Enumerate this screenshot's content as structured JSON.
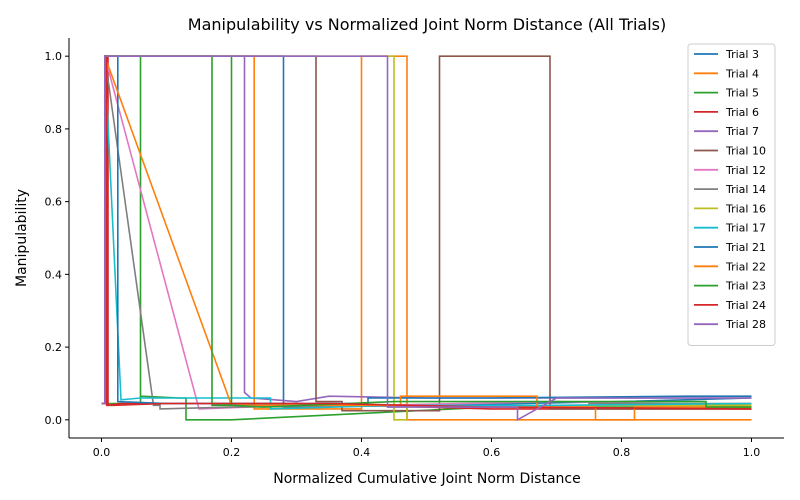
{
  "chart_data": {
    "type": "line",
    "title": "Manipulability vs Normalized Joint Norm Distance (All Trials)",
    "xlabel": "Normalized Cumulative Joint Norm Distance",
    "ylabel": "Manipulability",
    "xlim": [
      -0.05,
      1.05
    ],
    "ylim": [
      -0.05,
      1.05
    ],
    "xticks": [
      "0.0",
      "0.2",
      "0.4",
      "0.6",
      "0.8",
      "1.0"
    ],
    "yticks": [
      "0.0",
      "0.2",
      "0.4",
      "0.6",
      "0.8",
      "1.0"
    ],
    "grid": false,
    "legend_position": "top-right",
    "series": [
      {
        "name": "Trial 3",
        "color": "#1f77b4",
        "x": [
          0.0,
          0.005,
          0.005,
          0.02,
          0.2,
          0.28,
          0.28,
          0.28,
          0.3,
          0.5,
          0.8,
          1.0
        ],
        "y": [
          0.045,
          0.045,
          1.0,
          1.0,
          1.0,
          1.0,
          0.04,
          0.035,
          0.035,
          0.04,
          0.05,
          0.06
        ]
      },
      {
        "name": "Trial 4",
        "color": "#ff7f0e",
        "x": [
          0.0,
          0.005,
          0.005,
          0.1,
          0.235,
          0.235,
          0.24,
          0.4,
          0.4,
          0.47,
          0.47,
          1.0
        ],
        "y": [
          0.045,
          0.045,
          1.0,
          1.0,
          1.0,
          0.03,
          0.03,
          0.03,
          1.0,
          1.0,
          0.0,
          0.0
        ]
      },
      {
        "name": "Trial 5",
        "color": "#2ca02c",
        "x": [
          0.0,
          0.06,
          0.06,
          0.06,
          0.12,
          0.13,
          0.13,
          0.2,
          0.6,
          1.0
        ],
        "y": [
          0.045,
          0.045,
          1.0,
          0.065,
          0.06,
          0.06,
          0.0,
          0.0,
          0.035,
          0.035
        ]
      },
      {
        "name": "Trial 6",
        "color": "#d62728",
        "x": [
          0.0,
          0.005,
          0.005,
          0.01,
          0.01,
          0.03,
          0.1,
          0.3,
          0.6,
          1.0
        ],
        "y": [
          0.045,
          0.045,
          1.0,
          1.0,
          0.04,
          0.045,
          0.045,
          0.045,
          0.03,
          0.03
        ]
      },
      {
        "name": "Trial 7",
        "color": "#9467bd",
        "x": [
          0.0,
          0.005,
          0.005,
          0.02,
          0.22,
          0.22,
          0.23,
          0.3,
          0.35,
          0.5,
          0.8,
          1.0
        ],
        "y": [
          0.045,
          0.045,
          1.0,
          1.0,
          1.0,
          0.075,
          0.06,
          0.05,
          0.065,
          0.06,
          0.06,
          0.06
        ]
      },
      {
        "name": "Trial 10",
        "color": "#8c564b",
        "x": [
          0.0,
          0.005,
          0.005,
          0.1,
          0.33,
          0.33,
          0.37,
          0.37,
          0.52,
          0.52,
          0.69,
          0.69,
          1.0
        ],
        "y": [
          0.045,
          0.045,
          1.0,
          1.0,
          1.0,
          0.05,
          0.05,
          0.025,
          0.025,
          1.0,
          1.0,
          0.03,
          0.03
        ]
      },
      {
        "name": "Trial 12",
        "color": "#e377c2",
        "x": [
          0.0,
          0.005,
          0.005,
          0.15,
          0.3,
          0.38,
          0.42,
          0.7,
          1.0
        ],
        "y": [
          0.045,
          0.045,
          1.0,
          0.03,
          0.04,
          0.04,
          0.04,
          0.05,
          0.04
        ]
      },
      {
        "name": "Trial 14",
        "color": "#7f7f7f",
        "x": [
          0.0,
          0.005,
          0.005,
          0.08,
          0.09,
          0.09,
          0.2,
          0.5,
          0.75,
          0.75,
          1.0
        ],
        "y": [
          0.045,
          0.045,
          1.0,
          0.04,
          0.04,
          0.03,
          0.035,
          0.04,
          0.04,
          0.045,
          0.045
        ]
      },
      {
        "name": "Trial 16",
        "color": "#bcbd22",
        "x": [
          0.0,
          0.005,
          0.005,
          0.1,
          0.45,
          0.45,
          0.47,
          0.47,
          1.0
        ],
        "y": [
          0.045,
          0.045,
          1.0,
          1.0,
          1.0,
          0.0,
          0.0,
          0.04,
          0.04
        ]
      },
      {
        "name": "Trial 17",
        "color": "#17becf",
        "x": [
          0.0,
          0.005,
          0.005,
          0.03,
          0.06,
          0.2,
          0.26,
          0.26,
          0.45,
          0.7,
          1.0
        ],
        "y": [
          0.045,
          0.045,
          1.0,
          0.055,
          0.06,
          0.06,
          0.06,
          0.03,
          0.04,
          0.04,
          0.045
        ]
      },
      {
        "name": "Trial 21",
        "color": "#1f77b4",
        "x": [
          0.0,
          0.005,
          0.005,
          0.025,
          0.025,
          0.1,
          0.3,
          0.41,
          0.41,
          0.6,
          0.9,
          1.0
        ],
        "y": [
          0.045,
          0.045,
          1.0,
          1.0,
          0.05,
          0.045,
          0.045,
          0.045,
          0.06,
          0.06,
          0.065,
          0.065
        ]
      },
      {
        "name": "Trial 22",
        "color": "#ff7f0e",
        "x": [
          0.0,
          0.005,
          0.005,
          0.2,
          0.4,
          0.46,
          0.46,
          0.67,
          0.67,
          0.76,
          0.76,
          0.82,
          0.82,
          0.98,
          0.98,
          1.0
        ],
        "y": [
          0.045,
          0.045,
          1.0,
          0.04,
          0.04,
          0.04,
          0.065,
          0.065,
          0.035,
          0.035,
          0.0,
          0.0,
          0.035,
          0.035,
          0.035,
          0.035
        ]
      },
      {
        "name": "Trial 23",
        "color": "#2ca02c",
        "x": [
          0.0,
          0.005,
          0.005,
          0.17,
          0.17,
          0.2,
          0.2,
          0.2,
          0.25,
          0.45,
          0.7,
          0.93,
          0.93,
          1.0
        ],
        "y": [
          0.045,
          0.045,
          1.0,
          1.0,
          0.04,
          0.04,
          1.0,
          0.04,
          0.035,
          0.05,
          0.05,
          0.05,
          0.035,
          0.035
        ]
      },
      {
        "name": "Trial 24",
        "color": "#d62728",
        "x": [
          0.0,
          0.005,
          0.005,
          0.008,
          0.008,
          0.02,
          0.1,
          0.35,
          0.6,
          1.0
        ],
        "y": [
          0.045,
          0.045,
          1.0,
          1.0,
          0.04,
          0.04,
          0.045,
          0.045,
          0.035,
          0.03
        ]
      },
      {
        "name": "Trial 28",
        "color": "#9467bd",
        "x": [
          0.0,
          0.005,
          0.005,
          0.44,
          0.44,
          0.5,
          0.64,
          0.64,
          0.7,
          1.0
        ],
        "y": [
          0.045,
          0.045,
          1.0,
          1.0,
          0.035,
          0.035,
          0.035,
          0.0,
          0.06,
          0.06
        ]
      }
    ]
  }
}
